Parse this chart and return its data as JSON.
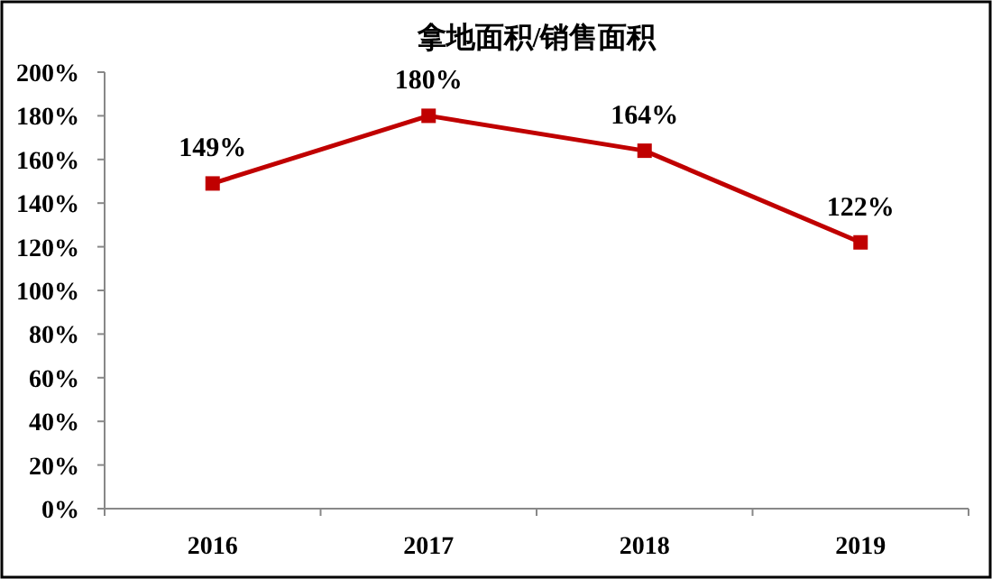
{
  "chart_data": {
    "type": "line",
    "title": "拿地面积/销售面积",
    "categories": [
      "2016",
      "2017",
      "2018",
      "2019"
    ],
    "series": [
      {
        "color": "#c00000",
        "values": [
          149,
          180,
          164,
          122
        ],
        "value_labels": [
          "149%",
          "180%",
          "164%",
          "122%"
        ]
      }
    ],
    "ylim": [
      0,
      200
    ],
    "yticks": [
      {
        "value": 0,
        "label": "0%"
      },
      {
        "value": 20,
        "label": "20%"
      },
      {
        "value": 40,
        "label": "40%"
      },
      {
        "value": 60,
        "label": "60%"
      },
      {
        "value": 80,
        "label": "80%"
      },
      {
        "value": 100,
        "label": "100%"
      },
      {
        "value": 120,
        "label": "120%"
      },
      {
        "value": 140,
        "label": "140%"
      },
      {
        "value": 160,
        "label": "160%"
      },
      {
        "value": 180,
        "label": "180%"
      },
      {
        "value": 200,
        "label": "200%"
      }
    ],
    "grid": false,
    "marker": "square",
    "line_style": "solid"
  }
}
